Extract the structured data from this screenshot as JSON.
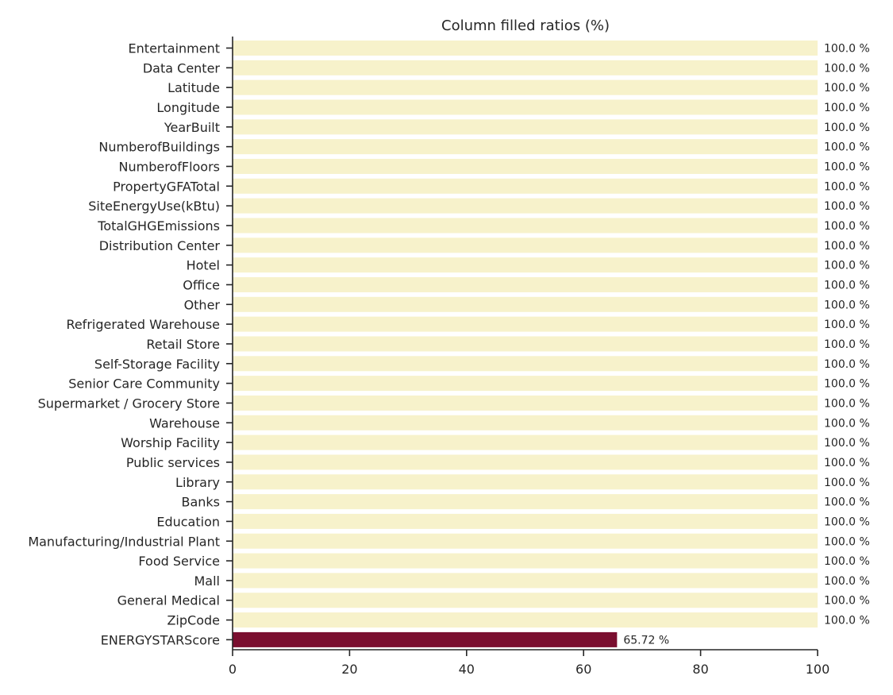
{
  "chart_data": {
    "type": "bar",
    "orientation": "horizontal",
    "title": "Column filled ratios (%)",
    "xlabel": "",
    "ylabel": "",
    "xlim": [
      0,
      100
    ],
    "x_ticks": [
      0,
      20,
      40,
      60,
      80,
      100
    ],
    "grid": false,
    "value_suffix": " %",
    "colors": {
      "full": "#f7f2cb",
      "partial": "#7a0e2f"
    },
    "categories": [
      "Entertainment",
      "Data Center",
      "Latitude",
      "Longitude",
      "YearBuilt",
      "NumberofBuildings",
      "NumberofFloors",
      "PropertyGFATotal",
      "SiteEnergyUse(kBtu)",
      "TotalGHGEmissions",
      "Distribution Center",
      "Hotel",
      "Office",
      "Other",
      "Refrigerated Warehouse",
      "Retail Store",
      "Self-Storage Facility",
      "Senior Care Community",
      "Supermarket / Grocery Store",
      "Warehouse",
      "Worship Facility",
      "Public services",
      "Library",
      "Banks",
      "Education",
      "Manufacturing/Industrial Plant",
      "Food Service",
      "Mall",
      "General Medical",
      "ZipCode",
      "ENERGYSTARScore"
    ],
    "values": [
      100,
      100,
      100,
      100,
      100,
      100,
      100,
      100,
      100,
      100,
      100,
      100,
      100,
      100,
      100,
      100,
      100,
      100,
      100,
      100,
      100,
      100,
      100,
      100,
      100,
      100,
      100,
      100,
      100,
      100,
      65.72
    ],
    "value_labels": [
      "100.0",
      "100.0",
      "100.0",
      "100.0",
      "100.0",
      "100.0",
      "100.0",
      "100.0",
      "100.0",
      "100.0",
      "100.0",
      "100.0",
      "100.0",
      "100.0",
      "100.0",
      "100.0",
      "100.0",
      "100.0",
      "100.0",
      "100.0",
      "100.0",
      "100.0",
      "100.0",
      "100.0",
      "100.0",
      "100.0",
      "100.0",
      "100.0",
      "100.0",
      "100.0",
      "65.72"
    ]
  }
}
